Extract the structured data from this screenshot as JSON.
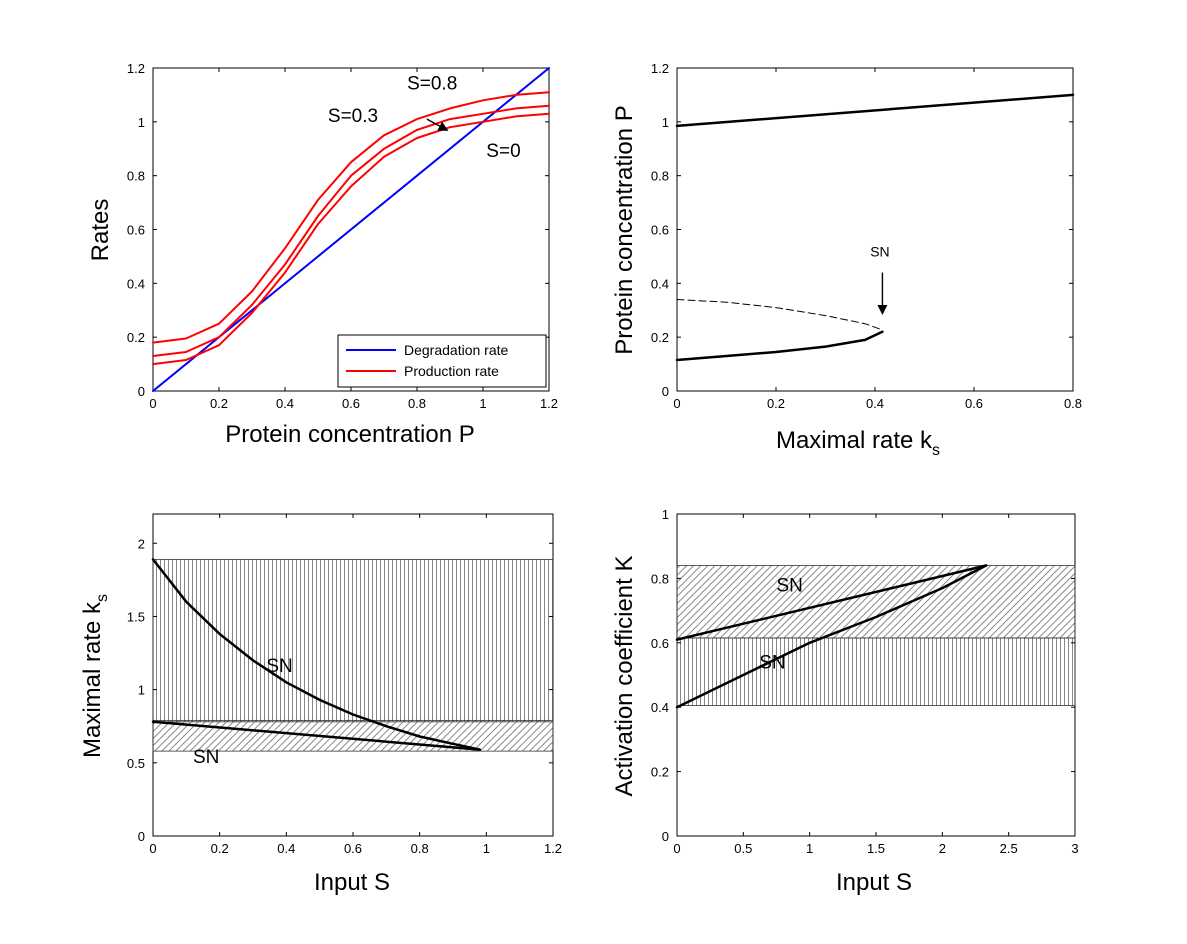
{
  "chart_data": [
    {
      "type": "line",
      "id": "a",
      "xlabel": "Protein concentration P",
      "ylabel": "Rates",
      "xlim": [
        0,
        1.2
      ],
      "ylim": [
        0,
        1.2
      ],
      "xticks": [
        "0",
        "0.2",
        "0.4",
        "0.6",
        "0.8",
        "1",
        "1.2"
      ],
      "yticks": [
        "0",
        "0.2",
        "0.4",
        "0.6",
        "0.8",
        "1",
        "1.2"
      ],
      "series": [
        {
          "name": "Degradation rate",
          "color": "#0000ff",
          "x": [
            0,
            1.2
          ],
          "y": [
            0,
            1.2
          ]
        },
        {
          "label": "S=0.8",
          "color": "#ff0000",
          "x": [
            0,
            0.1,
            0.2,
            0.3,
            0.4,
            0.5,
            0.6,
            0.7,
            0.8,
            0.9,
            1.0,
            1.1,
            1.2
          ],
          "y": [
            0.18,
            0.195,
            0.25,
            0.37,
            0.53,
            0.71,
            0.85,
            0.95,
            1.01,
            1.05,
            1.08,
            1.1,
            1.11
          ]
        },
        {
          "label": "S=0.3",
          "color": "#ff0000",
          "x": [
            0,
            0.1,
            0.2,
            0.3,
            0.4,
            0.5,
            0.6,
            0.7,
            0.8,
            0.9,
            1.0,
            1.1,
            1.2
          ],
          "y": [
            0.13,
            0.145,
            0.2,
            0.32,
            0.47,
            0.65,
            0.8,
            0.9,
            0.97,
            1.01,
            1.03,
            1.05,
            1.06
          ]
        },
        {
          "label": "S=0",
          "color": "#ff0000",
          "x": [
            0,
            0.1,
            0.2,
            0.3,
            0.4,
            0.5,
            0.6,
            0.7,
            0.8,
            0.9,
            1.0,
            1.1,
            1.2
          ],
          "y": [
            0.1,
            0.115,
            0.17,
            0.29,
            0.44,
            0.62,
            0.76,
            0.87,
            0.94,
            0.98,
            1.0,
            1.02,
            1.03
          ]
        }
      ],
      "legend": {
        "placement": "bottom-right",
        "entries": [
          {
            "name": "Degradation rate",
            "color": "#0000ff"
          },
          {
            "name": "Production rate",
            "color": "#ff0000"
          }
        ]
      },
      "annotations": [
        {
          "text": "S=0.8",
          "x": 0.77,
          "y": 1.12
        },
        {
          "text": "S=0.3",
          "x": 0.53,
          "y": 1.0
        },
        {
          "text": "S=0",
          "x": 1.01,
          "y": 0.87
        }
      ],
      "arrow": {
        "from": [
          0.83,
          1.01
        ],
        "to": [
          0.89,
          0.97
        ]
      }
    },
    {
      "type": "line",
      "id": "b",
      "xlabel": "Maximal rate k",
      "xlabel_sub": "s",
      "ylabel": "Protein concentration P",
      "xlim": [
        0,
        0.8
      ],
      "ylim": [
        0,
        1.2
      ],
      "xticks": [
        "0",
        "0.2",
        "0.4",
        "0.6",
        "0.8"
      ],
      "yticks": [
        "0",
        "0.2",
        "0.4",
        "0.6",
        "0.8",
        "1",
        "1.2"
      ],
      "series": [
        {
          "style": "solid",
          "x": [
            0,
            0.8
          ],
          "y": [
            0.985,
            1.1
          ]
        },
        {
          "style": "dashed",
          "x": [
            0,
            0.1,
            0.2,
            0.3,
            0.38,
            0.41
          ],
          "y": [
            0.34,
            0.33,
            0.31,
            0.28,
            0.25,
            0.23
          ]
        },
        {
          "style": "solid",
          "x": [
            0,
            0.1,
            0.2,
            0.3,
            0.38,
            0.415
          ],
          "y": [
            0.115,
            0.13,
            0.145,
            0.165,
            0.19,
            0.22
          ]
        }
      ],
      "annotations": [
        {
          "text": "SN",
          "x": 0.41,
          "y": 0.5
        }
      ],
      "arrow": {
        "from": [
          0.415,
          0.44
        ],
        "to": [
          0.415,
          0.29
        ]
      }
    },
    {
      "type": "line",
      "id": "c",
      "xlabel": "Input S",
      "ylabel": "Maximal rate k",
      "ylabel_sub": "s",
      "xlim": [
        0,
        1.2
      ],
      "ylim": [
        0,
        2.2
      ],
      "xticks": [
        "0",
        "0.2",
        "0.4",
        "0.6",
        "0.8",
        "1",
        "1.2"
      ],
      "yticks": [
        "0",
        "0.5",
        "1",
        "1.5",
        "2"
      ],
      "bands": [
        {
          "pattern": "vertical",
          "y0": 0.78,
          "y1": 1.89
        },
        {
          "pattern": "diagonal",
          "y0": 0.58,
          "y1": 0.79
        }
      ],
      "series": [
        {
          "x": [
            0,
            0.1,
            0.2,
            0.3,
            0.4,
            0.5,
            0.6,
            0.7,
            0.8,
            0.9,
            0.98
          ],
          "y": [
            1.89,
            1.6,
            1.38,
            1.2,
            1.05,
            0.93,
            0.83,
            0.75,
            0.68,
            0.63,
            0.59
          ]
        },
        {
          "x": [
            0,
            0.98
          ],
          "y": [
            0.78,
            0.59
          ]
        }
      ],
      "annotations": [
        {
          "text": "SN",
          "x": 0.34,
          "y": 1.12
        },
        {
          "text": "SN",
          "x": 0.12,
          "y": 0.5
        }
      ]
    },
    {
      "type": "line",
      "id": "d",
      "xlabel": "Input S",
      "ylabel": "Activation coefficient K",
      "xlim": [
        0,
        3
      ],
      "ylim": [
        0,
        1
      ],
      "xticks": [
        "0",
        "0.5",
        "1",
        "1.5",
        "2",
        "2.5",
        "3"
      ],
      "yticks": [
        "0",
        "0.2",
        "0.4",
        "0.6",
        "0.8",
        "1"
      ],
      "bands": [
        {
          "pattern": "diagonal",
          "y0": 0.615,
          "y1": 0.84
        },
        {
          "pattern": "vertical",
          "y0": 0.405,
          "y1": 0.615
        }
      ],
      "series": [
        {
          "x": [
            0,
            2.33
          ],
          "y": [
            0.61,
            0.84
          ]
        },
        {
          "x": [
            0,
            0.5,
            1.0,
            1.5,
            2.0,
            2.33
          ],
          "y": [
            0.4,
            0.5,
            0.6,
            0.68,
            0.77,
            0.84
          ]
        }
      ],
      "annotations": [
        {
          "text": "SN",
          "x": 0.75,
          "y": 0.76
        },
        {
          "text": "SN",
          "x": 0.62,
          "y": 0.52
        }
      ]
    }
  ]
}
